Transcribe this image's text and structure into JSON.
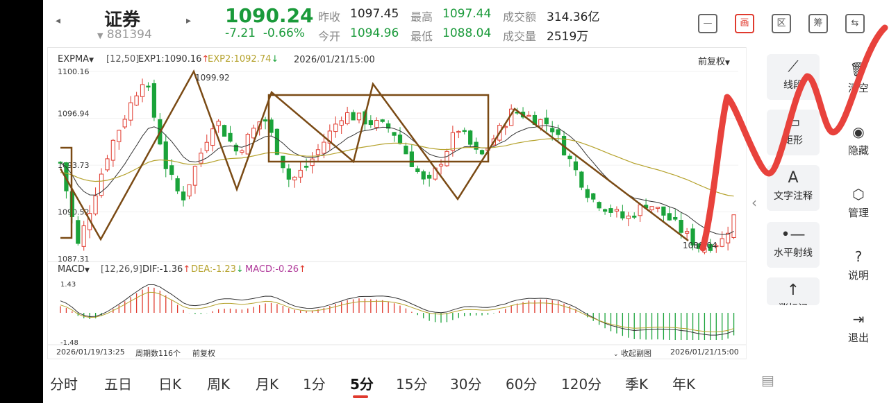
{
  "header": {
    "stock_name": "证券",
    "stock_code": "881394",
    "price": "1090.24",
    "change": "-7.21",
    "change_pct": "-0.66%",
    "quotes": [
      {
        "label": "昨收",
        "value": "1097.45",
        "color": "dark"
      },
      {
        "label": "今开",
        "value": "1094.96",
        "color": "green"
      },
      {
        "label": "最高",
        "value": "1097.44",
        "color": "green"
      },
      {
        "label": "最低",
        "value": "1088.04",
        "color": "green"
      },
      {
        "label": "成交额",
        "value": "314.36亿",
        "color": "dark"
      },
      {
        "label": "成交量",
        "value": "2519万",
        "color": "dark"
      }
    ],
    "toolbar_icons": [
      "minus-box-icon",
      "drawing-icon",
      "zone-icon",
      "chip-icon",
      "device-switch-icon"
    ],
    "toolbar_text": [
      "—",
      "画",
      "区",
      "筹",
      "⇆"
    ]
  },
  "chart": {
    "main_indicator": "EXPMA",
    "main_params": "[12,50]",
    "exp1": "EXP1:1090.16",
    "exp2": "EXP2:1092.74",
    "cursor_time": "2026/01/21/15:00",
    "adjust": "前复权",
    "y_high_label": "1100.16",
    "y_ticks": [
      "1096.94",
      "1093.73",
      "1090.52"
    ],
    "y_low_label": "1087.31",
    "peak_label": "1099.92",
    "low_mark_label": "1088.04",
    "sub_indicator": "MACD",
    "sub_params": "[12,26,9]",
    "dif": "DIF:-1.36",
    "dea": "DEA:-1.23",
    "macd": "MACD:-0.26",
    "macd_high": "1.43",
    "macd_low": "-1.48",
    "start_time": "2026/01/19/13:25",
    "period_count": "周期数116个",
    "adjust_bottom": "前复权",
    "collapse_sub": "收起副图",
    "end_time": "2026/01/21/15:00"
  },
  "chart_data": {
    "type": "candlestick",
    "ylim": [
      1087.31,
      1100.16
    ],
    "close_path_start": 1093.9,
    "visible_extremes": {
      "high": 1099.92,
      "low": 1088.04
    },
    "series": [
      {
        "name": "EXP1",
        "value": 1090.16,
        "color": "#333333"
      },
      {
        "name": "EXP2",
        "value": 1092.74,
        "color": "#b5a22c"
      }
    ],
    "macd": {
      "dif": -1.36,
      "dea": -1.23,
      "macd": -0.26,
      "range": [
        -1.48,
        1.43
      ]
    },
    "colors": {
      "up": "#e03a2e",
      "down": "#1aa33a",
      "annotation": "#7a4a14",
      "marker": "#e8423c"
    }
  },
  "periods": [
    "分时",
    "五日",
    "日K",
    "周K",
    "月K",
    "1分",
    "5分",
    "15分",
    "30分",
    "60分",
    "120分",
    "季K",
    "年K"
  ],
  "active_period": "5分",
  "draw_tools": [
    {
      "icon": "line-segment-icon",
      "label": "线段",
      "glyph": "⟋"
    },
    {
      "icon": "rectangle-icon",
      "label": "矩形",
      "glyph": "▭"
    },
    {
      "icon": "text-annotation-icon",
      "label": "文字注释",
      "glyph": "A"
    },
    {
      "icon": "horizontal-ray-icon",
      "label": "水平射线",
      "glyph": "•—"
    },
    {
      "icon": "up-arrow-icon",
      "label": "涨标记",
      "glyph": "↑"
    }
  ],
  "side_actions": [
    {
      "icon": "trash-icon",
      "label": "清空",
      "glyph": "🗑"
    },
    {
      "icon": "eye-icon",
      "label": "隐藏",
      "glyph": "◉"
    },
    {
      "icon": "settings-icon",
      "label": "管理",
      "glyph": "⬡"
    },
    {
      "icon": "help-icon",
      "label": "说明",
      "glyph": "?"
    },
    {
      "icon": "exit-icon",
      "label": "退出",
      "glyph": "⇥"
    }
  ]
}
